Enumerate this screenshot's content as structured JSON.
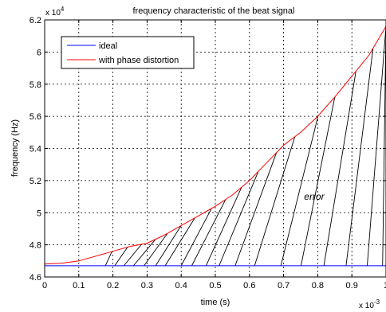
{
  "chart_data": {
    "type": "line",
    "title": "frequency characteristic of the beat signal",
    "xlabel": "time (s)",
    "ylabel": "frequency (Hz)",
    "x_exponent_label": "x 10",
    "x_exponent": "-3",
    "y_exponent_label": "x 10",
    "y_exponent": "4",
    "xlim": [
      0,
      1.0
    ],
    "ylim": [
      4.6,
      6.2
    ],
    "xticks": [
      0,
      0.1,
      0.2,
      0.3,
      0.4,
      0.5,
      0.6,
      0.7,
      0.8,
      0.9,
      1
    ],
    "yticks": [
      4.6,
      4.8,
      5,
      5.2,
      5.4,
      5.6,
      5.8,
      6,
      6.2
    ],
    "grid": true,
    "legend_position": "top-left",
    "series": [
      {
        "name": "ideal",
        "color": "#0000ff",
        "x": [
          0,
          1.0
        ],
        "y": [
          4.67,
          4.67
        ]
      },
      {
        "name": "with phase distortion",
        "color": "#ff0000",
        "x": [
          0,
          0.05,
          0.1,
          0.15,
          0.2,
          0.25,
          0.3,
          0.35,
          0.4,
          0.45,
          0.5,
          0.55,
          0.6,
          0.65,
          0.7,
          0.75,
          0.8,
          0.85,
          0.9,
          0.95,
          1.0
        ],
        "y": [
          4.68,
          4.685,
          4.7,
          4.73,
          4.76,
          4.79,
          4.81,
          4.86,
          4.92,
          4.98,
          5.04,
          5.11,
          5.2,
          5.31,
          5.42,
          5.5,
          5.6,
          5.72,
          5.85,
          5.98,
          6.16
        ]
      }
    ],
    "error_lines": {
      "color": "#000000",
      "base_y": 4.67,
      "segments": [
        {
          "x0": 0.178,
          "x1": 0.197
        },
        {
          "x0": 0.205,
          "x1": 0.243
        },
        {
          "x0": 0.232,
          "x1": 0.284
        },
        {
          "x0": 0.26,
          "x1": 0.325
        },
        {
          "x0": 0.291,
          "x1": 0.36
        },
        {
          "x0": 0.325,
          "x1": 0.4
        },
        {
          "x0": 0.353,
          "x1": 0.44
        },
        {
          "x0": 0.4,
          "x1": 0.489
        },
        {
          "x0": 0.431,
          "x1": 0.53
        },
        {
          "x0": 0.473,
          "x1": 0.577
        },
        {
          "x0": 0.511,
          "x1": 0.626
        },
        {
          "x0": 0.558,
          "x1": 0.679
        },
        {
          "x0": 0.615,
          "x1": 0.733
        },
        {
          "x0": 0.692,
          "x1": 0.801
        },
        {
          "x0": 0.751,
          "x1": 0.85
        },
        {
          "x0": 0.818,
          "x1": 0.912
        },
        {
          "x0": 0.883,
          "x1": 0.962
        },
        {
          "x0": 0.945,
          "x1": 1.0
        },
        {
          "x0": 0.99,
          "x1": 1.0
        }
      ]
    },
    "annotations": [
      {
        "text": "error",
        "x": 0.76,
        "y": 5.08
      }
    ]
  }
}
